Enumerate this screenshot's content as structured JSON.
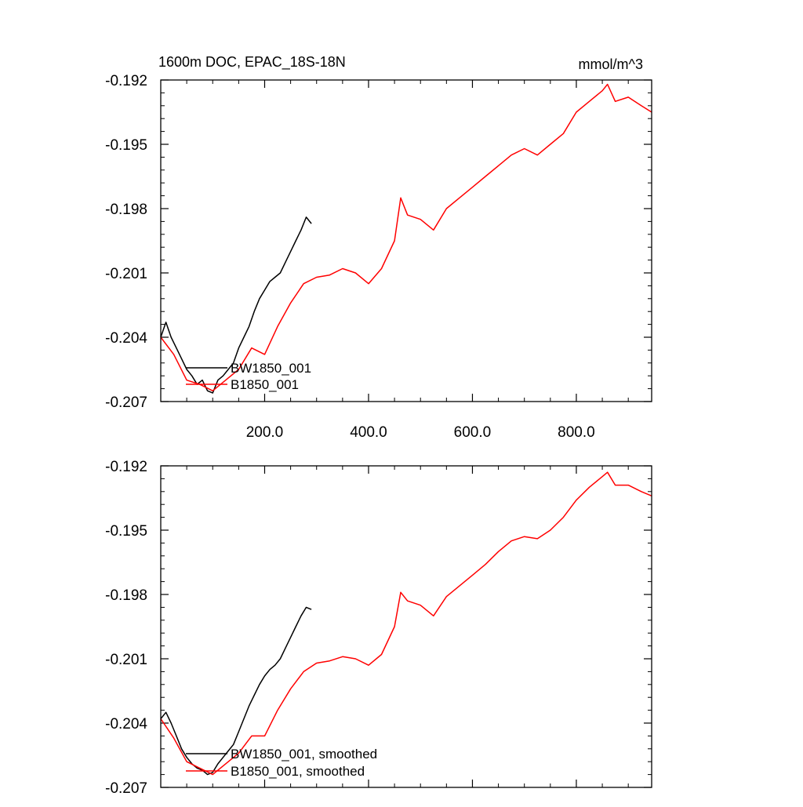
{
  "chart_data": [
    {
      "type": "line",
      "title": "1600m DOC, EPAC_18S-18N",
      "units": "mmol/m^3",
      "xlim": [
        0,
        945
      ],
      "ylim": [
        -0.207,
        -0.192
      ],
      "xticks": [
        200,
        400,
        600,
        800
      ],
      "xtick_labels": [
        "200.0",
        "400.0",
        "600.0",
        "800.0"
      ],
      "yticks": [
        -0.192,
        -0.195,
        -0.198,
        -0.201,
        -0.204,
        -0.207
      ],
      "ytick_labels": [
        "-0.192",
        "-0.195",
        "-0.198",
        "-0.201",
        "-0.204",
        "-0.207"
      ],
      "grid": false,
      "legend_position": "lower-left",
      "series": [
        {
          "name": "BW1850_001",
          "color": "#000000",
          "x": [
            0,
            10,
            20,
            30,
            40,
            50,
            60,
            70,
            80,
            90,
            100,
            110,
            120,
            130,
            140,
            150,
            160,
            170,
            180,
            190,
            200,
            210,
            220,
            230,
            240,
            250,
            260,
            270,
            280,
            290
          ],
          "y": [
            -0.204,
            -0.2033,
            -0.204,
            -0.2045,
            -0.205,
            -0.2055,
            -0.2058,
            -0.2062,
            -0.206,
            -0.2065,
            -0.2066,
            -0.206,
            -0.2058,
            -0.2055,
            -0.2052,
            -0.2045,
            -0.204,
            -0.2035,
            -0.2028,
            -0.2022,
            -0.2018,
            -0.2014,
            -0.2012,
            -0.201,
            -0.2005,
            -0.2,
            -0.1995,
            -0.199,
            -0.1984,
            -0.1987
          ]
        },
        {
          "name": "B1850_001",
          "color": "#ff0000",
          "x": [
            0,
            25,
            50,
            75,
            100,
            125,
            150,
            175,
            200,
            225,
            250,
            275,
            300,
            325,
            350,
            375,
            400,
            425,
            450,
            462,
            475,
            500,
            525,
            550,
            575,
            600,
            625,
            650,
            675,
            700,
            725,
            750,
            775,
            800,
            825,
            850,
            860,
            875,
            900,
            925,
            945
          ],
          "y": [
            -0.204,
            -0.2048,
            -0.206,
            -0.2062,
            -0.2065,
            -0.206,
            -0.2055,
            -0.2045,
            -0.2048,
            -0.2035,
            -0.2024,
            -0.2015,
            -0.2012,
            -0.2011,
            -0.2008,
            -0.201,
            -0.2015,
            -0.2008,
            -0.1995,
            -0.1975,
            -0.1983,
            -0.1985,
            -0.199,
            -0.198,
            -0.1975,
            -0.197,
            -0.1965,
            -0.196,
            -0.1955,
            -0.1952,
            -0.1955,
            -0.195,
            -0.1945,
            -0.1935,
            -0.193,
            -0.1925,
            -0.1922,
            -0.193,
            -0.1928,
            -0.1932,
            -0.1935
          ]
        }
      ]
    },
    {
      "type": "line",
      "xlim": [
        0,
        945
      ],
      "ylim": [
        -0.207,
        -0.192
      ],
      "yticks": [
        -0.192,
        -0.195,
        -0.198,
        -0.201,
        -0.204,
        -0.207
      ],
      "ytick_labels": [
        "-0.192",
        "-0.195",
        "-0.198",
        "-0.201",
        "-0.204",
        "-0.207"
      ],
      "grid": false,
      "legend_position": "lower-left",
      "series": [
        {
          "name": "BW1850_001, smoothed",
          "color": "#000000",
          "x": [
            0,
            10,
            20,
            30,
            40,
            50,
            60,
            70,
            80,
            90,
            100,
            110,
            120,
            130,
            140,
            150,
            160,
            170,
            180,
            190,
            200,
            210,
            220,
            230,
            240,
            250,
            260,
            270,
            280,
            290
          ],
          "y": [
            -0.2038,
            -0.2035,
            -0.204,
            -0.2046,
            -0.2052,
            -0.2056,
            -0.2059,
            -0.2061,
            -0.2062,
            -0.2064,
            -0.2063,
            -0.2059,
            -0.2056,
            -0.2053,
            -0.205,
            -0.2044,
            -0.2038,
            -0.2032,
            -0.2027,
            -0.2022,
            -0.2018,
            -0.2015,
            -0.2013,
            -0.201,
            -0.2005,
            -0.2,
            -0.1995,
            -0.199,
            -0.1986,
            -0.1987
          ]
        },
        {
          "name": "B1850_001, smoothed",
          "color": "#ff0000",
          "x": [
            0,
            25,
            50,
            75,
            100,
            125,
            150,
            175,
            200,
            225,
            250,
            275,
            300,
            325,
            350,
            375,
            400,
            425,
            450,
            462,
            475,
            500,
            525,
            550,
            575,
            600,
            625,
            650,
            675,
            700,
            725,
            750,
            775,
            800,
            825,
            850,
            860,
            875,
            900,
            925,
            945
          ],
          "y": [
            -0.2038,
            -0.2047,
            -0.2058,
            -0.2061,
            -0.2064,
            -0.2059,
            -0.2054,
            -0.2046,
            -0.2046,
            -0.2034,
            -0.2024,
            -0.2016,
            -0.2012,
            -0.2011,
            -0.2009,
            -0.201,
            -0.2013,
            -0.2008,
            -0.1995,
            -0.1979,
            -0.1983,
            -0.1985,
            -0.199,
            -0.1981,
            -0.1976,
            -0.1971,
            -0.1966,
            -0.196,
            -0.1955,
            -0.1953,
            -0.1954,
            -0.195,
            -0.1944,
            -0.1936,
            -0.193,
            -0.1925,
            -0.1923,
            -0.1929,
            -0.1929,
            -0.1932,
            -0.1934
          ]
        }
      ]
    }
  ]
}
